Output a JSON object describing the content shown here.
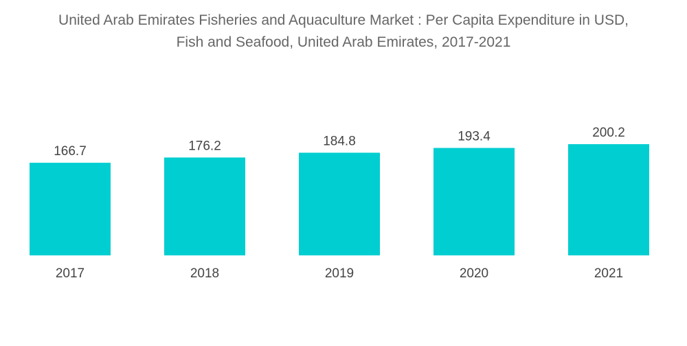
{
  "title_line1": "United Arab Emirates Fisheries and Aquaculture Market : Per Capita Expenditure in USD,",
  "title_line2": "Fish and Seafood, United Arab Emirates, 2017-2021",
  "chart_data": {
    "type": "bar",
    "title": "United Arab Emirates Fisheries and Aquaculture Market : Per Capita Expenditure in USD, Fish and Seafood, United Arab Emirates, 2017-2021",
    "categories": [
      "2017",
      "2018",
      "2019",
      "2020",
      "2021"
    ],
    "values": [
      166.7,
      176.2,
      184.8,
      193.4,
      200.2
    ],
    "value_labels": [
      "166.7",
      "176.2",
      "184.8",
      "193.4",
      "200.2"
    ],
    "xlabel": "",
    "ylabel": "",
    "ylim": [
      0,
      200.2
    ],
    "grid": false,
    "legend": "none",
    "bar_color": "#00CED1"
  }
}
